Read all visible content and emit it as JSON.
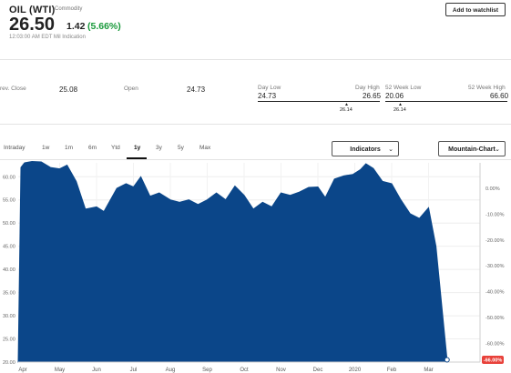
{
  "header": {
    "title": "OIL (WTI)",
    "subtitle": "Commodity",
    "price": "26.50",
    "change": "1.42",
    "change_pct": "(5.66%)",
    "timestamp": "12:03:00 AM EDT Mil Indication",
    "watchlist_label": "Add to watchlist",
    "change_color": "#1a9a3c"
  },
  "stats": {
    "prev_close_label": "rev. Close",
    "prev_close": "25.08",
    "open_label": "Open",
    "open": "24.73",
    "day_low_label": "Day Low",
    "day_high_label": "Day High",
    "day_low": "24.73",
    "day_high": "26.65",
    "day_marker": "26.14",
    "week52_low_label": "52 Week Low",
    "week52_high_label": "52 Week High",
    "week52_low": "20.06",
    "week52_high": "66.60",
    "week52_marker": "26.14"
  },
  "tabs": [
    "Intraday",
    "1w",
    "1m",
    "6m",
    "Ytd",
    "1y",
    "3y",
    "5y",
    "Max"
  ],
  "active_tab": "1y",
  "controls": {
    "indicators_label": "Indicators",
    "chart_type_label": "Mountain-Chart"
  },
  "icons": {
    "dropdown": "chevron-down-icon",
    "marker": "caret-up-icon"
  },
  "chart_data": {
    "type": "area",
    "color": "#0b4689",
    "x_ticks": [
      "Apr",
      "May",
      "Jun",
      "Jul",
      "Aug",
      "Sep",
      "Oct",
      "Nov",
      "Dec",
      "2020",
      "Feb",
      "Mar"
    ],
    "x_tick_positions": [
      0,
      1,
      2,
      3,
      4,
      5,
      6,
      7,
      8,
      9,
      10,
      11
    ],
    "y_ticks": [
      "60.00",
      "55.00",
      "50.00",
      "45.00",
      "40.00",
      "35.00",
      "30.00",
      "25.00",
      "20.00"
    ],
    "ylim": [
      20,
      63
    ],
    "right_ticks": [
      "0.00%",
      "-10.00%",
      "-20.00%",
      "-30.00%",
      "-40.00%",
      "-50.00%",
      "-60.00%"
    ],
    "right_badge": "-66.00%",
    "badge_color": "#e8413a",
    "x": [
      -0.05,
      0.05,
      0.25,
      0.5,
      0.75,
      1.0,
      1.2,
      1.45,
      1.7,
      2.0,
      2.2,
      2.55,
      2.8,
      3.0,
      3.2,
      3.45,
      3.7,
      4.0,
      4.25,
      4.5,
      4.75,
      5.0,
      5.25,
      5.5,
      5.75,
      6.0,
      6.25,
      6.5,
      6.75,
      7.0,
      7.25,
      7.5,
      7.75,
      8.0,
      8.2,
      8.45,
      8.7,
      8.95,
      9.15,
      9.3,
      9.5,
      9.75,
      10.0,
      10.25,
      10.5,
      10.75,
      11.0,
      11.2,
      11.5
    ],
    "values": [
      62.0,
      63.0,
      63.3,
      63.2,
      62.0,
      61.7,
      62.5,
      59.0,
      53.0,
      53.5,
      52.5,
      57.5,
      58.5,
      57.8,
      60.0,
      55.8,
      56.5,
      55.0,
      54.5,
      55.0,
      54.0,
      55.0,
      56.5,
      55.0,
      58.0,
      56.0,
      53.0,
      54.5,
      53.5,
      56.5,
      56.0,
      56.7,
      57.7,
      57.8,
      55.5,
      59.5,
      60.2,
      60.5,
      61.5,
      62.8,
      61.8,
      59.0,
      58.5,
      55.0,
      52.0,
      51.0,
      53.3,
      45.0,
      20.5
    ]
  }
}
